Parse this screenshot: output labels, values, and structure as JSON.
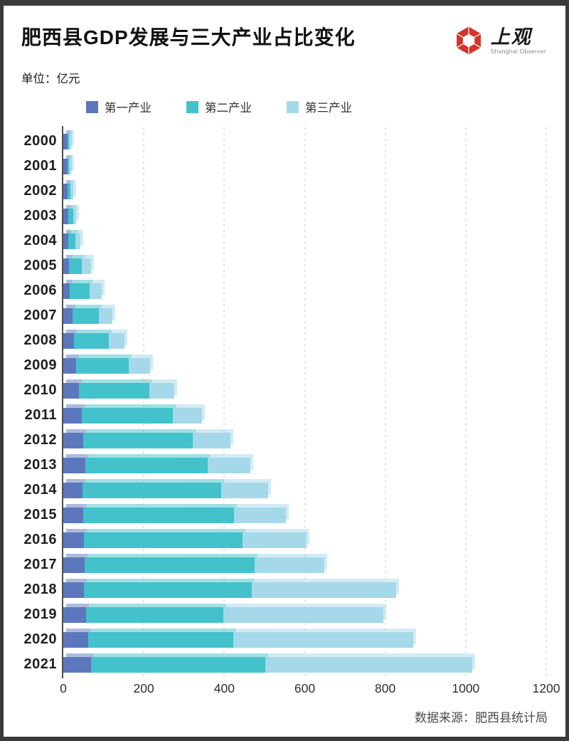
{
  "header": {
    "title": "肥西县GDP发展与三大产业占比变化",
    "unit_label": "单位：亿元",
    "logo": {
      "name": "上观",
      "subtitle": "Shanghai Observer",
      "brand_color": "#d5342b"
    }
  },
  "legend": [
    {
      "label": "第一产业",
      "color": "#5d77bc"
    },
    {
      "label": "第二产业",
      "color": "#43c2cb"
    },
    {
      "label": "第三产业",
      "color": "#a5d9ea"
    }
  ],
  "chart_data": {
    "type": "bar",
    "orientation": "horizontal",
    "stacked": true,
    "title": "肥西县GDP发展与三大产业占比变化",
    "unit": "亿元",
    "categories": [
      "2000",
      "2001",
      "2002",
      "2003",
      "2004",
      "2005",
      "2006",
      "2007",
      "2008",
      "2009",
      "2010",
      "2011",
      "2012",
      "2013",
      "2014",
      "2015",
      "2016",
      "2017",
      "2018",
      "2019",
      "2020",
      "2021"
    ],
    "series": [
      {
        "name": "第一产业",
        "color": "#5d77bc",
        "values": [
          10,
          10,
          11,
          12,
          13,
          14,
          16,
          23,
          27,
          32,
          38,
          46,
          50,
          54,
          48,
          50,
          51,
          53,
          52,
          56,
          62,
          69
        ]
      },
      {
        "name": "第二产业",
        "color": "#43c2cb",
        "values": [
          4,
          5,
          7,
          12,
          17,
          32,
          50,
          65,
          87,
          131,
          175,
          226,
          272,
          304,
          345,
          375,
          395,
          423,
          417,
          342,
          360,
          433
        ]
      },
      {
        "name": "第三产业",
        "color": "#a5d9ea",
        "values": [
          5,
          5,
          6,
          8,
          12,
          23,
          29,
          34,
          38,
          52,
          62,
          72,
          93,
          106,
          116,
          128,
          159,
          173,
          359,
          398,
          447,
          515
        ]
      }
    ],
    "totals": [
      19,
      20,
      24,
      32,
      42,
      69,
      95,
      122,
      152,
      215,
      275,
      344,
      415,
      464,
      509,
      553,
      605,
      649,
      828,
      796,
      869,
      1017
    ],
    "xlim": [
      0,
      1200
    ],
    "xticks": [
      0,
      200,
      400,
      600,
      800,
      1000,
      1200
    ],
    "grid": "dashed-vertical",
    "legend_position": "top"
  },
  "footer": {
    "source": "数据来源：肥西县统计局"
  }
}
